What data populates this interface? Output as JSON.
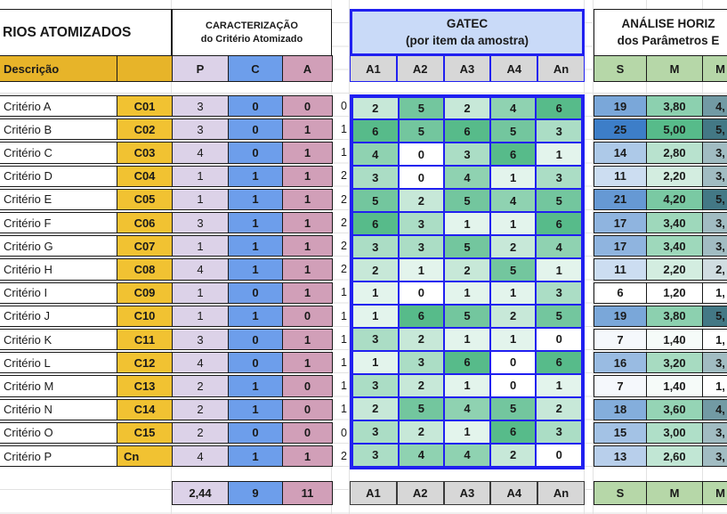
{
  "left": {
    "title": "RIOS ATOMIZADOS",
    "descricao_label": "Descrição"
  },
  "caracterizacao": {
    "line1": "CARACTERIZAÇÃO",
    "line2": "do Critério Atomizado",
    "cols": [
      "P",
      "C",
      "A"
    ]
  },
  "gatec": {
    "line1": "GATEC",
    "line2": "(por item da amostra)",
    "cols": [
      "A1",
      "A2",
      "A3",
      "A4",
      "An"
    ]
  },
  "analise": {
    "line1": "ANÁLISE HORIZ",
    "line2": "dos Parâmetros E",
    "cols": [
      "S",
      "M",
      "M"
    ]
  },
  "rows": [
    {
      "desc": "Critério A",
      "code": "C01",
      "p": 3,
      "c": 0,
      "a": 0,
      "ca": 0,
      "gatec": [
        2,
        5,
        2,
        4,
        6
      ],
      "s": 19,
      "m": "3,80",
      "md": "4,"
    },
    {
      "desc": "Critério B",
      "code": "C02",
      "p": 3,
      "c": 0,
      "a": 1,
      "ca": 1,
      "gatec": [
        6,
        5,
        6,
        5,
        3
      ],
      "s": 25,
      "m": "5,00",
      "md": "5,"
    },
    {
      "desc": "Critério C",
      "code": "C03",
      "p": 4,
      "c": 0,
      "a": 1,
      "ca": 1,
      "gatec": [
        4,
        0,
        3,
        6,
        1
      ],
      "s": 14,
      "m": "2,80",
      "md": "3,"
    },
    {
      "desc": "Critério D",
      "code": "C04",
      "p": 1,
      "c": 1,
      "a": 1,
      "ca": 2,
      "gatec": [
        3,
        0,
        4,
        1,
        3
      ],
      "s": 11,
      "m": "2,20",
      "md": "3,"
    },
    {
      "desc": "Critério E",
      "code": "C05",
      "p": 1,
      "c": 1,
      "a": 1,
      "ca": 2,
      "gatec": [
        5,
        2,
        5,
        4,
        5
      ],
      "s": 21,
      "m": "4,20",
      "md": "5,"
    },
    {
      "desc": "Critério F",
      "code": "C06",
      "p": 3,
      "c": 1,
      "a": 1,
      "ca": 2,
      "gatec": [
        6,
        3,
        1,
        1,
        6
      ],
      "s": 17,
      "m": "3,40",
      "md": "3,"
    },
    {
      "desc": "Critério G",
      "code": "C07",
      "p": 1,
      "c": 1,
      "a": 1,
      "ca": 2,
      "gatec": [
        3,
        3,
        5,
        2,
        4
      ],
      "s": 17,
      "m": "3,40",
      "md": "3,"
    },
    {
      "desc": "Critério H",
      "code": "C08",
      "p": 4,
      "c": 1,
      "a": 1,
      "ca": 2,
      "gatec": [
        2,
        1,
        2,
        5,
        1
      ],
      "s": 11,
      "m": "2,20",
      "md": "2,"
    },
    {
      "desc": "Critério I",
      "code": "C09",
      "p": 1,
      "c": 0,
      "a": 1,
      "ca": 1,
      "gatec": [
        1,
        0,
        1,
        1,
        3
      ],
      "s": 6,
      "m": "1,20",
      "md": "1,"
    },
    {
      "desc": "Critério J",
      "code": "C10",
      "p": 1,
      "c": 1,
      "a": 0,
      "ca": 1,
      "gatec": [
        1,
        6,
        5,
        2,
        5
      ],
      "s": 19,
      "m": "3,80",
      "md": "5,"
    },
    {
      "desc": "Critério K",
      "code": "C11",
      "p": 3,
      "c": 0,
      "a": 1,
      "ca": 1,
      "gatec": [
        3,
        2,
        1,
        1,
        0
      ],
      "s": 7,
      "m": "1,40",
      "md": "1,"
    },
    {
      "desc": "Critério L",
      "code": "C12",
      "p": 4,
      "c": 0,
      "a": 1,
      "ca": 1,
      "gatec": [
        1,
        3,
        6,
        0,
        6
      ],
      "s": 16,
      "m": "3,20",
      "md": "3,"
    },
    {
      "desc": "Critério M",
      "code": "C13",
      "p": 2,
      "c": 1,
      "a": 0,
      "ca": 1,
      "gatec": [
        3,
        2,
        1,
        0,
        1
      ],
      "s": 7,
      "m": "1,40",
      "md": "1,"
    },
    {
      "desc": "Critério N",
      "code": "C14",
      "p": 2,
      "c": 1,
      "a": 0,
      "ca": 1,
      "gatec": [
        2,
        5,
        4,
        5,
        2
      ],
      "s": 18,
      "m": "3,60",
      "md": "4,"
    },
    {
      "desc": "Critério O",
      "code": "C15",
      "p": 2,
      "c": 0,
      "a": 0,
      "ca": 0,
      "gatec": [
        3,
        2,
        1,
        6,
        3
      ],
      "s": 15,
      "m": "3,00",
      "md": "3,"
    },
    {
      "desc": "Critério P",
      "code": "Cn",
      "p": 4,
      "c": 1,
      "a": 1,
      "ca": 2,
      "gatec": [
        3,
        4,
        4,
        2,
        0
      ],
      "s": 13,
      "m": "2,60",
      "md": "3,"
    }
  ],
  "totals": {
    "p": "2,44",
    "c": "9",
    "a": "11"
  },
  "colors": {
    "gold_header": "#E7B429",
    "gold_cell": "#F1C232",
    "purple": "#DCD2E8",
    "blue": "#6D9EEB",
    "pink": "#D19FB8",
    "gatec_header_bg": "#C9DAF8",
    "gatec_border": "#2020F0",
    "gray_header": "#D7D7D7",
    "green_header": "#B6D7A8",
    "green_scale_max": "#57BB8A",
    "blue_scale_max": "#3D7EC8",
    "teal_scale_max": "#437885",
    "border_black": "#1A1A1A"
  },
  "scales": {
    "gatec_min": 0,
    "gatec_max": 6,
    "s_min": 6,
    "s_max": 25,
    "m_min": 1.2,
    "m_max": 5.0,
    "md_min": 1,
    "md_max": 5
  }
}
